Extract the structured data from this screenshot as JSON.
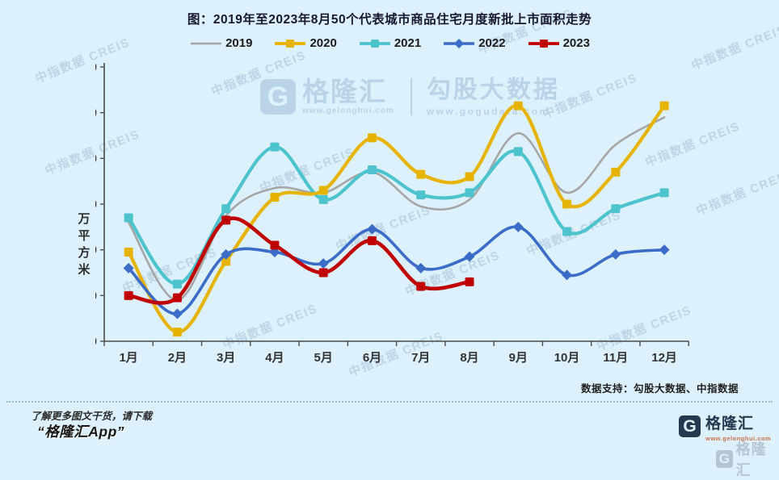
{
  "title": "图：2019年至2023年8月50个代表城市商品住宅月度新批上市面积走势",
  "chart_data": {
    "type": "line",
    "categories": [
      "1月",
      "2月",
      "3月",
      "4月",
      "5月",
      "6月",
      "7月",
      "8月",
      "9月",
      "10月",
      "11月",
      "12月"
    ],
    "series": [
      {
        "name": "2019",
        "color": "#a6a6a6",
        "marker": "none",
        "line_width": 2.6,
        "values": [
          2600,
          900,
          2750,
          3350,
          3250,
          3700,
          2950,
          3100,
          4550,
          3250,
          4300,
          4900
        ]
      },
      {
        "name": "2020",
        "color": "#e6b400",
        "marker": "square",
        "line_width": 4.2,
        "values": [
          1950,
          200,
          1750,
          3150,
          3300,
          4450,
          3650,
          3600,
          5150,
          3000,
          3700,
          5150
        ]
      },
      {
        "name": "2021",
        "color": "#4cc3cd",
        "marker": "square",
        "line_width": 4.2,
        "values": [
          2700,
          1250,
          2900,
          4250,
          3100,
          3750,
          3200,
          3250,
          4150,
          2400,
          2900,
          3250
        ]
      },
      {
        "name": "2022",
        "color": "#3a6cc8",
        "marker": "diamond",
        "line_width": 3.6,
        "values": [
          1600,
          600,
          1900,
          1950,
          1700,
          2450,
          1600,
          1850,
          2500,
          1450,
          1900,
          2000
        ]
      },
      {
        "name": "2023",
        "color": "#c00000",
        "marker": "square",
        "line_width": 4.6,
        "values": [
          1000,
          950,
          2650,
          2100,
          1500,
          2200,
          1200,
          1300
        ]
      }
    ],
    "xlabel": "",
    "ylabel": "万平方米",
    "ylim": [
      0,
      6000
    ],
    "ytick_step": 1000,
    "grid": false,
    "legend_position": "top"
  },
  "watermarks": {
    "diagonal_text": "中指数据 CREIS",
    "center_logo": {
      "icon": "G",
      "brand": "格隆汇",
      "brand_url": "www.gelonghui.com",
      "partner": "勾股大数据",
      "partner_url": "www.gogudata.com"
    }
  },
  "data_support": "数据支持：勾股大数据、中指数据",
  "footer": {
    "note_line1": "了解更多图文干货，请下载",
    "note_line2": "“格隆汇App”",
    "logo_icon": "G",
    "logo_brand": "格隆汇",
    "logo_url": "www.gelonghui.com",
    "corner_icon": "G",
    "corner_brand": "格隆汇"
  },
  "colors": {
    "background": "#ddf1fc",
    "axis": "#4a4a4a",
    "tick_label": "#333333",
    "watermark": "#7494b0"
  }
}
